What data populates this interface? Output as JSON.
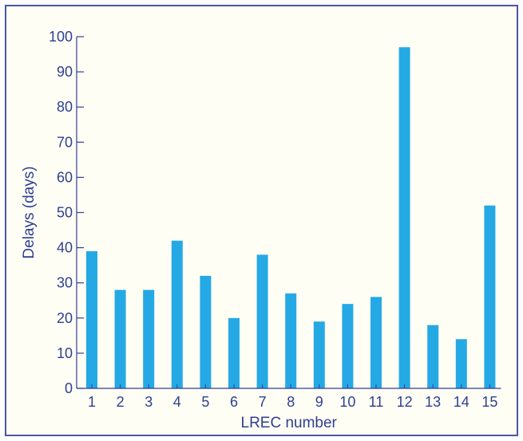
{
  "chart_data": {
    "type": "bar",
    "title": "",
    "xlabel": "LREC number",
    "ylabel": "Delays (days)",
    "categories": [
      "1",
      "2",
      "3",
      "4",
      "5",
      "6",
      "7",
      "8",
      "9",
      "10",
      "11",
      "12",
      "13",
      "14",
      "15"
    ],
    "series": [
      {
        "values": [
          39,
          28,
          28,
          42,
          32,
          20,
          38,
          27,
          19,
          24,
          26,
          97,
          18,
          14,
          52
        ]
      }
    ],
    "ylim": [
      0,
      100
    ],
    "yticks": [
      0,
      10,
      20,
      30,
      40,
      50,
      60,
      70,
      80,
      90,
      100
    ],
    "grid": false,
    "legend": "none"
  },
  "colors": {
    "bar": "#25a9e4",
    "axis": "#2e3f94",
    "frame": "#4a56a8",
    "background": "#fffef4"
  }
}
